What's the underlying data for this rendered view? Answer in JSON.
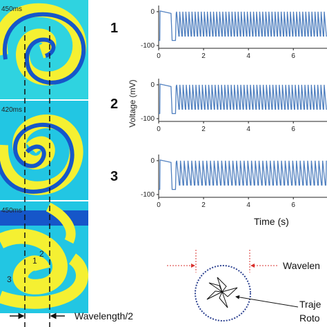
{
  "panels": {
    "time_stamps": [
      "450ms",
      "420ms",
      "450ms"
    ],
    "region_labels": [
      "1",
      "2",
      "3"
    ],
    "wavelength_half_label": "Wavelength/2"
  },
  "chart_data": [
    {
      "type": "line",
      "panel_number": "1",
      "ylim": [
        -100,
        10
      ],
      "yticks": [
        "0",
        "-100"
      ],
      "xticks": [
        "0",
        "2",
        "4",
        "6"
      ],
      "xlim": [
        0,
        7.5
      ],
      "x": [
        0,
        0.3,
        0.7,
        1.0,
        2.0,
        3.0,
        4.0,
        5.0,
        6.0,
        7.0
      ],
      "y": [
        -85,
        0,
        -85,
        -5,
        -10,
        -8,
        -10,
        -9,
        -10,
        -10
      ],
      "peaks_per_second": 7.3,
      "color": "#4f7fbf"
    },
    {
      "type": "line",
      "panel_number": "2",
      "ylim": [
        -100,
        10
      ],
      "yticks": [
        "0",
        "-100"
      ],
      "xticks": [
        "0",
        "2",
        "4",
        "6"
      ],
      "xlim": [
        0,
        7.5
      ],
      "x": [
        0,
        0.3,
        0.7,
        1.0,
        2.0,
        3.0,
        4.0,
        5.0,
        6.0,
        7.0
      ],
      "y": [
        -85,
        0,
        -85,
        -5,
        -10,
        -8,
        -10,
        -9,
        -10,
        -10
      ],
      "peaks_per_second": 7.0,
      "color": "#4f7fbf"
    },
    {
      "type": "line",
      "panel_number": "3",
      "ylim": [
        -100,
        10
      ],
      "yticks": [
        "0",
        "-100"
      ],
      "xticks": [
        "0",
        "2",
        "4",
        "6"
      ],
      "xlim": [
        0,
        7.5
      ],
      "x": [
        0,
        0.3,
        0.7,
        1.0,
        2.0,
        3.0,
        4.0,
        5.0,
        6.0,
        7.0
      ],
      "y": [
        -85,
        0,
        -85,
        -5,
        -10,
        -8,
        -10,
        -9,
        -10,
        -10
      ],
      "peaks_per_second": 6.0,
      "color": "#4f7fbf"
    }
  ],
  "axes": {
    "ylabel": "Voltage (mV)",
    "xlabel": "Time (s)"
  },
  "inset": {
    "wavelength_label": "Wavelen",
    "trajectory_label_line1": "Traje",
    "trajectory_label_line2": "Roto"
  },
  "colors": {
    "trace": "#4f7fbf",
    "wave_yellow": "#f5f032",
    "wave_cyan": "#2fd3e0",
    "wave_blue": "#1656c9",
    "arrow_red": "#d9302c",
    "circle": "#2a3f8f"
  }
}
